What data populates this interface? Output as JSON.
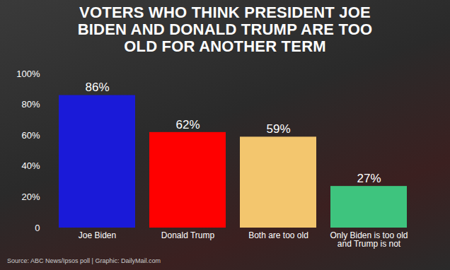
{
  "chart_data": {
    "type": "bar",
    "title": "VOTERS WHO THINK PRESIDENT JOE BIDEN AND DONALD TRUMP ARE TOO OLD FOR ANOTHER TERM",
    "caption": "Source: ABC News/Ipsos poll  |  Graphic: DailyMail.com",
    "categories": [
      "Joe Biden",
      "Donald Trump",
      "Both are too old",
      "Only Biden is too old and Trump is not"
    ],
    "values": [
      86,
      62,
      59,
      27
    ],
    "value_labels": [
      "86%",
      "62%",
      "59%",
      "27%"
    ],
    "colors": [
      "#1a1ad8",
      "#ff0000",
      "#f3c66e",
      "#3ec47e"
    ],
    "ylim": [
      0,
      100
    ],
    "yticks": [
      0,
      {
        "value": 20,
        "label": "20%"
      },
      {
        "value": 40,
        "label": "40%"
      },
      {
        "value": 60,
        "label": "60%"
      },
      {
        "value": 80,
        "label": "80%"
      },
      {
        "value": 100,
        "label": "100%"
      }
    ],
    "grid": false,
    "data_labels": true
  }
}
